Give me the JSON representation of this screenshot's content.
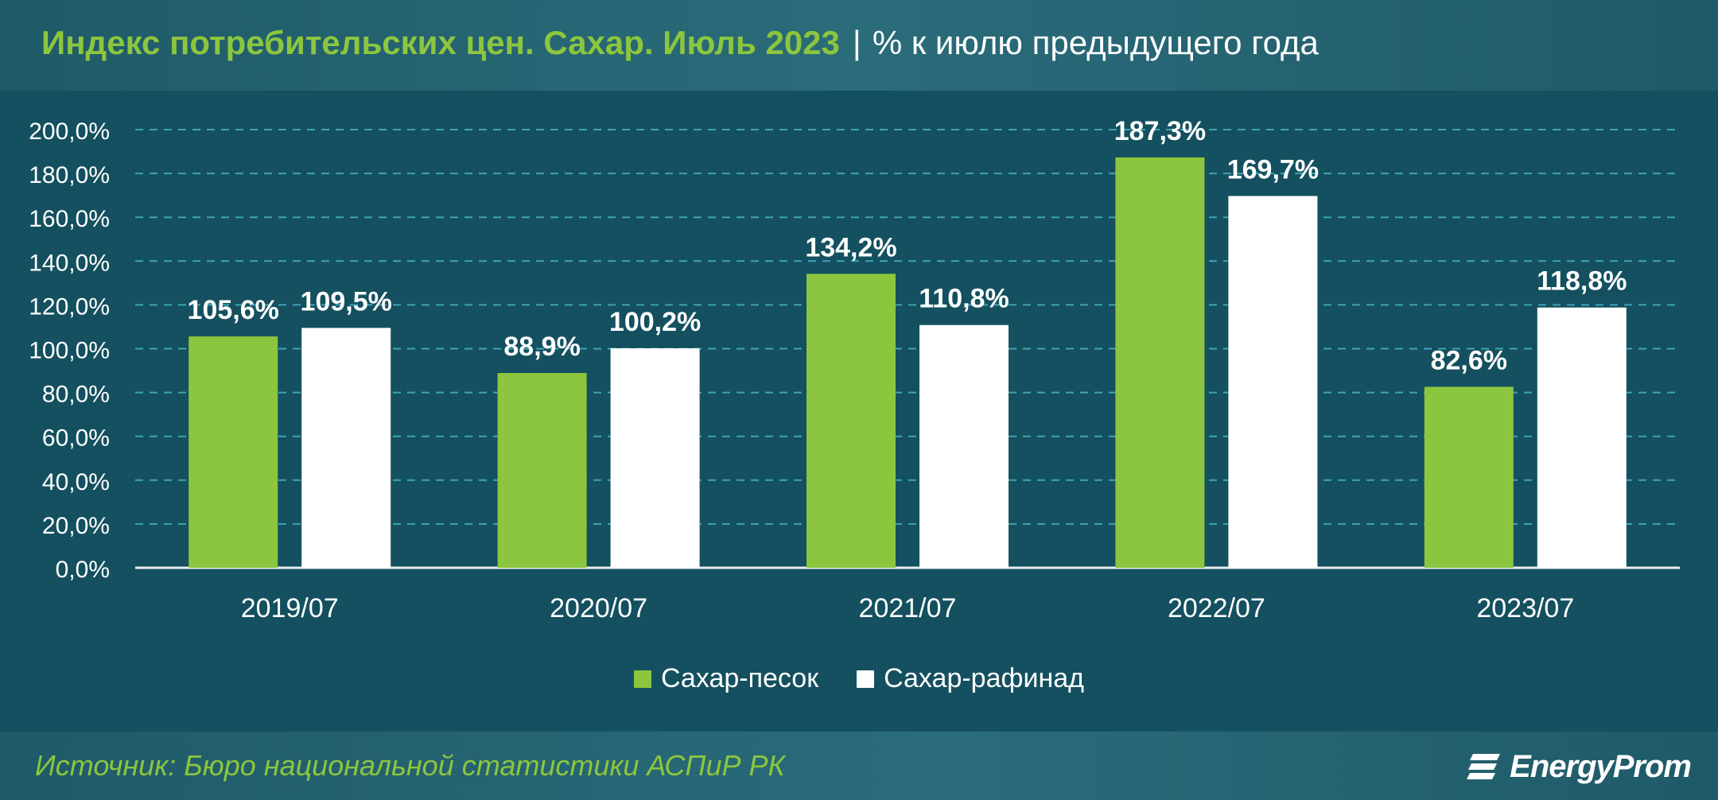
{
  "header": {
    "title": "Индекс потребительских цен. Сахар. Июль 2023",
    "separator": "|",
    "unit": "% к июлю предыдущего года"
  },
  "footer": {
    "source": "Источник: Бюро национальной статистики АСПиР РК",
    "logo_text": "EnergyProm"
  },
  "colors": {
    "background": "#14505f",
    "series_1": "#8cc63e",
    "series_2": "#ffffff",
    "grid": "#3fa3b5",
    "accent": "#8cc63e"
  },
  "chart_data": {
    "type": "bar",
    "categories": [
      "2019/07",
      "2020/07",
      "2021/07",
      "2022/07",
      "2023/07"
    ],
    "series": [
      {
        "name": "Сахар-песок",
        "values": [
          105.6,
          88.9,
          134.2,
          187.3,
          82.6
        ],
        "labels": [
          "105,6%",
          "88,9%",
          "134,2%",
          "187,3%",
          "82,6%"
        ]
      },
      {
        "name": "Сахар-рафинад",
        "values": [
          109.5,
          100.2,
          110.8,
          169.7,
          118.8
        ],
        "labels": [
          "109,5%",
          "100,2%",
          "110,8%",
          "169,7%",
          "118,8%"
        ]
      }
    ],
    "ylim": [
      0,
      200
    ],
    "yticks": [
      "0,0%",
      "20,0%",
      "40,0%",
      "60,0%",
      "80,0%",
      "100,0%",
      "120,0%",
      "140,0%",
      "160,0%",
      "180,0%",
      "200,0%"
    ],
    "grid": true,
    "legend_position": "bottom-center"
  }
}
